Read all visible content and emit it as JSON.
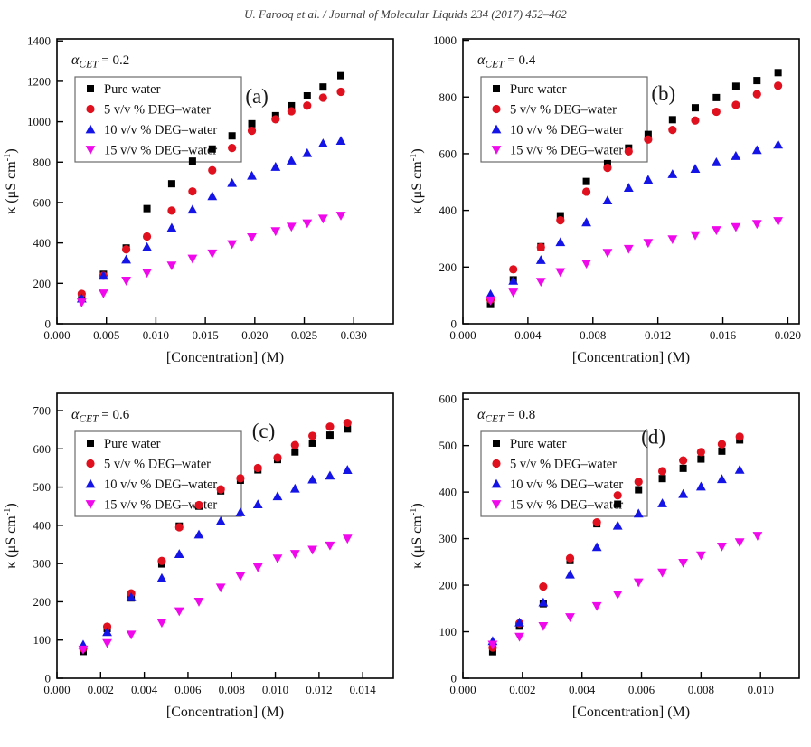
{
  "page": {
    "header": "U. Farooq et al. / Journal of Molecular Liquids 234 (2017) 452–462"
  },
  "chart_data": [
    {
      "type": "scatter",
      "panel_label": "(a)",
      "letter_pos": [
        0.56,
        0.2
      ],
      "title": {
        "symbol": "α",
        "subscript": "CET",
        "rest": "= 0.2"
      },
      "xlabel": "[Concentration] (M)",
      "ylabel": {
        "main": "κ (μS cm",
        "sup": "-1",
        "close": ")"
      },
      "xlim": [
        0,
        0.034
      ],
      "ylim": [
        0,
        1410
      ],
      "xticks": [
        0.0,
        0.005,
        0.01,
        0.015,
        0.02,
        0.025,
        0.03
      ],
      "yticks": [
        0,
        200,
        400,
        600,
        800,
        1000,
        1200,
        1400
      ],
      "xtick_decimals": 3,
      "legend_position": "top-left",
      "grid": false,
      "series": [
        {
          "name": "Pure water",
          "marker": "square",
          "color": "#000000",
          "x": [
            0.0025,
            0.0047,
            0.007,
            0.0091,
            0.0116,
            0.0137,
            0.0157,
            0.0177,
            0.0197,
            0.0221,
            0.0237,
            0.0253,
            0.0269,
            0.0287
          ],
          "y": [
            140,
            245,
            375,
            570,
            693,
            805,
            865,
            930,
            990,
            1030,
            1079,
            1128,
            1172,
            1228
          ]
        },
        {
          "name": "5 v/v %  DEG–water",
          "marker": "circle",
          "color": "#e1101e",
          "x": [
            0.0025,
            0.0047,
            0.007,
            0.0091,
            0.0116,
            0.0137,
            0.0157,
            0.0177,
            0.0197,
            0.0221,
            0.0237,
            0.0253,
            0.0269,
            0.0287
          ],
          "y": [
            148,
            238,
            368,
            432,
            560,
            655,
            760,
            870,
            955,
            1012,
            1052,
            1080,
            1119,
            1148
          ]
        },
        {
          "name": "10 v/v % DEG–water",
          "marker": "triangle-up",
          "color": "#1414e6",
          "x": [
            0.0025,
            0.0047,
            0.007,
            0.0091,
            0.0116,
            0.0137,
            0.0157,
            0.0177,
            0.0197,
            0.0221,
            0.0237,
            0.0253,
            0.0269,
            0.0287
          ],
          "y": [
            125,
            238,
            318,
            380,
            475,
            565,
            632,
            697,
            733,
            777,
            808,
            845,
            893,
            906
          ]
        },
        {
          "name": "15 v/v % DEG–water",
          "marker": "triangle-down",
          "color": "#f00aeb",
          "x": [
            0.0025,
            0.0047,
            0.007,
            0.0091,
            0.0116,
            0.0137,
            0.0157,
            0.0177,
            0.0197,
            0.0221,
            0.0237,
            0.0253,
            0.0269,
            0.0287
          ],
          "y": [
            105,
            150,
            213,
            252,
            288,
            322,
            348,
            394,
            428,
            458,
            480,
            497,
            520,
            535
          ]
        }
      ]
    },
    {
      "type": "scatter",
      "panel_label": "(b)",
      "letter_pos": [
        0.56,
        0.19
      ],
      "title": {
        "symbol": "α",
        "subscript": "CET",
        "rest": "= 0.4"
      },
      "xlabel": "[Concentration] (M)",
      "ylabel": {
        "main": "κ (μS cm",
        "sup": "-1",
        "close": ")"
      },
      "xlim": [
        0,
        0.0207
      ],
      "ylim": [
        0,
        1005
      ],
      "xticks": [
        0.0,
        0.004,
        0.008,
        0.012,
        0.016,
        0.02
      ],
      "yticks": [
        0,
        200,
        400,
        600,
        800,
        1000
      ],
      "xtick_decimals": 3,
      "legend_position": "top-left",
      "grid": false,
      "series": [
        {
          "name": "Pure water",
          "marker": "square",
          "color": "#000000",
          "x": [
            0.0017,
            0.0031,
            0.0048,
            0.006,
            0.0076,
            0.0089,
            0.0102,
            0.0114,
            0.0129,
            0.0143,
            0.0156,
            0.0168,
            0.0181,
            0.0194
          ],
          "y": [
            68,
            155,
            272,
            381,
            502,
            565,
            620,
            668,
            720,
            762,
            798,
            838,
            858,
            886
          ]
        },
        {
          "name": "5 v/v % DEG–water",
          "marker": "circle",
          "color": "#e1101e",
          "x": [
            0.0017,
            0.0031,
            0.0048,
            0.006,
            0.0076,
            0.0089,
            0.0102,
            0.0114,
            0.0129,
            0.0143,
            0.0156,
            0.0168,
            0.0181,
            0.0194
          ],
          "y": [
            85,
            192,
            270,
            365,
            466,
            550,
            608,
            650,
            684,
            717,
            748,
            772,
            810,
            840
          ]
        },
        {
          "name": "10 v/v % DEG–water",
          "marker": "triangle-up",
          "color": "#1414e6",
          "x": [
            0.0017,
            0.0031,
            0.0048,
            0.006,
            0.0076,
            0.0089,
            0.0102,
            0.0114,
            0.0129,
            0.0143,
            0.0156,
            0.0168,
            0.0181,
            0.0194
          ],
          "y": [
            104,
            152,
            225,
            288,
            358,
            435,
            480,
            508,
            528,
            547,
            570,
            592,
            613,
            632
          ]
        },
        {
          "name": "15 v/v % DEG–water",
          "marker": "triangle-down",
          "color": "#f00aeb",
          "x": [
            0.0017,
            0.0031,
            0.0048,
            0.006,
            0.0076,
            0.0089,
            0.0102,
            0.0114,
            0.0129,
            0.0143,
            0.0156,
            0.0168,
            0.0181,
            0.0194
          ],
          "y": [
            82,
            110,
            148,
            182,
            212,
            250,
            264,
            285,
            298,
            312,
            330,
            341,
            352,
            362
          ]
        }
      ]
    },
    {
      "type": "scatter",
      "panel_label": "(c)",
      "letter_pos": [
        0.58,
        0.13
      ],
      "title": {
        "symbol": "α",
        "subscript": "CET",
        "rest": "= 0.6"
      },
      "xlabel": "[Concentration] (M)",
      "ylabel": {
        "main": "κ (μS cm",
        "sup": "-1",
        "close": ")"
      },
      "xlim": [
        0,
        0.0154
      ],
      "ylim": [
        0,
        745
      ],
      "xticks": [
        0.0,
        0.002,
        0.004,
        0.006,
        0.008,
        0.01,
        0.012,
        0.014
      ],
      "yticks": [
        0,
        100,
        200,
        300,
        400,
        500,
        600,
        700
      ],
      "xtick_decimals": 3,
      "legend_position": "top-left",
      "grid": false,
      "series": [
        {
          "name": "Pure water",
          "marker": "square",
          "color": "#000000",
          "x": [
            0.0012,
            0.0023,
            0.0034,
            0.0048,
            0.0056,
            0.0065,
            0.0075,
            0.0084,
            0.0092,
            0.0101,
            0.0109,
            0.0117,
            0.0125,
            0.0133
          ],
          "y": [
            70,
            130,
            210,
            299,
            398,
            450,
            490,
            518,
            545,
            572,
            592,
            615,
            636,
            652
          ]
        },
        {
          "name": "5  v/v %  DEG–water",
          "marker": "circle",
          "color": "#e1101e",
          "x": [
            0.0012,
            0.0023,
            0.0034,
            0.0048,
            0.0056,
            0.0065,
            0.0075,
            0.0084,
            0.0092,
            0.0101,
            0.0109,
            0.0117,
            0.0125,
            0.0133
          ],
          "y": [
            78,
            135,
            222,
            307,
            395,
            453,
            494,
            523,
            550,
            577,
            610,
            634,
            658,
            668
          ]
        },
        {
          "name": "10 v/v % DEG–water",
          "marker": "triangle-up",
          "color": "#1414e6",
          "x": [
            0.0012,
            0.0023,
            0.0034,
            0.0048,
            0.0056,
            0.0065,
            0.0075,
            0.0084,
            0.0092,
            0.0101,
            0.0109,
            0.0117,
            0.0125,
            0.0133
          ],
          "y": [
            88,
            121,
            212,
            262,
            325,
            376,
            411,
            434,
            455,
            476,
            496,
            520,
            530,
            545
          ]
        },
        {
          "name": "15 v/v % DEG–water",
          "marker": "triangle-down",
          "color": "#f00aeb",
          "x": [
            0.0012,
            0.0023,
            0.0034,
            0.0048,
            0.0056,
            0.0065,
            0.0075,
            0.0084,
            0.0092,
            0.0101,
            0.0109,
            0.0117,
            0.0125,
            0.0133
          ],
          "y": [
            75,
            92,
            114,
            145,
            175,
            200,
            237,
            267,
            290,
            313,
            325,
            336,
            347,
            365
          ]
        }
      ]
    },
    {
      "type": "scatter",
      "panel_label": "(d)",
      "letter_pos": [
        0.53,
        0.15
      ],
      "title": {
        "symbol": "α",
        "subscript": "CET",
        "rest": "= 0.8"
      },
      "xlabel": "[Concentration] (M)",
      "ylabel": {
        "main": "κ (μS cm",
        "sup": "-1",
        "close": ")"
      },
      "xlim": [
        0,
        0.0113
      ],
      "ylim": [
        0,
        612
      ],
      "xticks": [
        0.0,
        0.002,
        0.004,
        0.006,
        0.008,
        0.01
      ],
      "yticks": [
        0,
        100,
        200,
        300,
        400,
        500,
        600
      ],
      "xtick_decimals": 3,
      "legend_position": "top-left",
      "grid": false,
      "series": [
        {
          "name": "Pure water",
          "marker": "square",
          "color": "#000000",
          "x": [
            0.001,
            0.0019,
            0.0027,
            0.0036,
            0.0045,
            0.0052,
            0.0059,
            0.0067,
            0.0074,
            0.008,
            0.0087,
            0.0093
          ],
          "y": [
            57,
            112,
            160,
            253,
            332,
            374,
            405,
            429,
            451,
            471,
            488,
            512
          ]
        },
        {
          "name": "5 v/v % DEG–water",
          "marker": "circle",
          "color": "#e1101e",
          "x": [
            0.001,
            0.0019,
            0.0027,
            0.0036,
            0.0045,
            0.0052,
            0.0059,
            0.0067,
            0.0074,
            0.008,
            0.0087,
            0.0093
          ],
          "y": [
            66,
            118,
            197,
            258,
            335,
            393,
            422,
            445,
            468,
            486,
            503,
            519
          ]
        },
        {
          "name": "10 v/v % DEG–water",
          "marker": "triangle-up",
          "color": "#1414e6",
          "x": [
            0.001,
            0.0019,
            0.0027,
            0.0036,
            0.0045,
            0.0052,
            0.0059,
            0.0067,
            0.0074,
            0.008,
            0.0087,
            0.0093
          ],
          "y": [
            80,
            120,
            163,
            223,
            282,
            328,
            354,
            376,
            396,
            412,
            428,
            448
          ]
        },
        {
          "name": "15 v/v % DEG–water",
          "marker": "triangle-down",
          "color": "#f00aeb",
          "x": [
            0.001,
            0.0019,
            0.0027,
            0.0036,
            0.0045,
            0.0052,
            0.0059,
            0.0067,
            0.0074,
            0.008,
            0.0087,
            0.0093,
            0.0099
          ],
          "y": [
            72,
            89,
            112,
            131,
            155,
            180,
            206,
            227,
            248,
            264,
            283,
            292,
            306
          ]
        }
      ]
    }
  ]
}
